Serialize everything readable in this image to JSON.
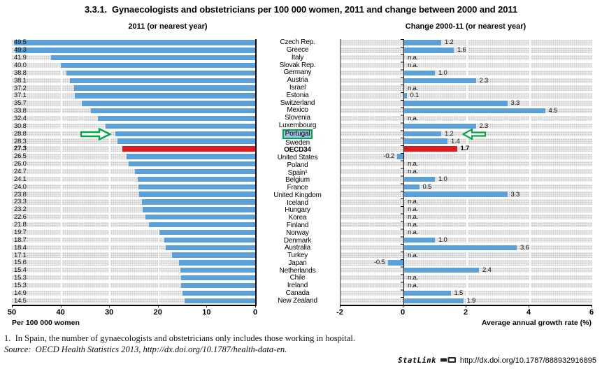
{
  "figure_title": "3.3.1.  Gynaecologists and obstetricians per 100 000 women, 2011 and change between 2000 and 2011",
  "left_chart": {
    "title": "2011 (or nearest year)",
    "axis_label": "Per 100 000 women",
    "ticks": [
      "50",
      "40",
      "30",
      "20",
      "10",
      "0"
    ],
    "max": 50
  },
  "right_chart": {
    "title": "Change 2000-11 (or nearest year)",
    "axis_label": "Average annual growth rate (%)",
    "ticks": [
      "-2",
      "0",
      "2",
      "4",
      "6"
    ],
    "min": -2,
    "max": 6,
    "na_text": "n.a."
  },
  "rows": [
    {
      "country": "Czech Rep.",
      "rate": 49.5,
      "rate_label": "49.5",
      "change": 1.2,
      "change_label": "1.2",
      "emphasis": false,
      "annotated": false
    },
    {
      "country": "Greece",
      "rate": 49.3,
      "rate_label": "49.3",
      "change": 1.6,
      "change_label": "1.6",
      "emphasis": false,
      "annotated": false
    },
    {
      "country": "Italy",
      "rate": 41.9,
      "rate_label": "41.9",
      "change": null,
      "change_label": "n.a.",
      "emphasis": false,
      "annotated": false
    },
    {
      "country": "Slovak Rep.",
      "rate": 40.0,
      "rate_label": "40.0",
      "change": null,
      "change_label": "n.a.",
      "emphasis": false,
      "annotated": false
    },
    {
      "country": "Germany",
      "rate": 38.8,
      "rate_label": "38.8",
      "change": 1.0,
      "change_label": "1.0",
      "emphasis": false,
      "annotated": false
    },
    {
      "country": "Austria",
      "rate": 38.1,
      "rate_label": "38.1",
      "change": 2.3,
      "change_label": "2.3",
      "emphasis": false,
      "annotated": false
    },
    {
      "country": "Israel",
      "rate": 37.2,
      "rate_label": "37.2",
      "change": null,
      "change_label": "n.a.",
      "emphasis": false,
      "annotated": false
    },
    {
      "country": "Estonia",
      "rate": 37.1,
      "rate_label": "37.1",
      "change": 0.1,
      "change_label": "0.1",
      "emphasis": false,
      "annotated": false
    },
    {
      "country": "Switzerland",
      "rate": 35.7,
      "rate_label": "35.7",
      "change": 3.3,
      "change_label": "3.3",
      "emphasis": false,
      "annotated": false
    },
    {
      "country": "Mexico",
      "rate": 33.8,
      "rate_label": "33.8",
      "change": 4.5,
      "change_label": "4.5",
      "emphasis": false,
      "annotated": false
    },
    {
      "country": "Slovenia",
      "rate": 32.4,
      "rate_label": "32.4",
      "change": null,
      "change_label": "n.a.",
      "emphasis": false,
      "annotated": false
    },
    {
      "country": "Luxembourg",
      "rate": 30.8,
      "rate_label": "30.8",
      "change": 2.3,
      "change_label": "2.3",
      "emphasis": false,
      "annotated": false
    },
    {
      "country": "Portugal",
      "rate": 28.8,
      "rate_label": "28.8",
      "change": 1.2,
      "change_label": "1.2",
      "emphasis": false,
      "annotated": true
    },
    {
      "country": "Sweden",
      "rate": 28.3,
      "rate_label": "28.3",
      "change": 1.4,
      "change_label": "1.4",
      "emphasis": false,
      "annotated": false
    },
    {
      "country": "OECD34",
      "rate": 27.3,
      "rate_label": "27.3",
      "change": 1.7,
      "change_label": "1.7",
      "emphasis": true,
      "annotated": false
    },
    {
      "country": "United States",
      "rate": 26.5,
      "rate_label": "26.5",
      "change": -0.2,
      "change_label": "-0.2",
      "emphasis": false,
      "annotated": false
    },
    {
      "country": "Poland",
      "rate": 26.0,
      "rate_label": "26.0",
      "change": null,
      "change_label": "n.a.",
      "emphasis": false,
      "annotated": false
    },
    {
      "country": "Spain¹",
      "rate": 24.7,
      "rate_label": "24.7",
      "change": null,
      "change_label": "n.a.",
      "emphasis": false,
      "annotated": false
    },
    {
      "country": "Belgium",
      "rate": 24.1,
      "rate_label": "24.1",
      "change": 1.0,
      "change_label": "1.0",
      "emphasis": false,
      "annotated": false
    },
    {
      "country": "France",
      "rate": 24.0,
      "rate_label": "24.0",
      "change": 0.5,
      "change_label": "0.5",
      "emphasis": false,
      "annotated": false
    },
    {
      "country": "United Kingdom",
      "rate": 23.8,
      "rate_label": "23.8",
      "change": 3.3,
      "change_label": "3.3",
      "emphasis": false,
      "annotated": false
    },
    {
      "country": "Iceland",
      "rate": 23.3,
      "rate_label": "23.3",
      "change": null,
      "change_label": "n.a.",
      "emphasis": false,
      "annotated": false
    },
    {
      "country": "Hungary",
      "rate": 23.2,
      "rate_label": "23.2",
      "change": null,
      "change_label": "n.a.",
      "emphasis": false,
      "annotated": false
    },
    {
      "country": "Korea",
      "rate": 22.6,
      "rate_label": "22.6",
      "change": null,
      "change_label": "n.a.",
      "emphasis": false,
      "annotated": false
    },
    {
      "country": "Finland",
      "rate": 21.8,
      "rate_label": "21.8",
      "change": null,
      "change_label": "n.a.",
      "emphasis": false,
      "annotated": false
    },
    {
      "country": "Norway",
      "rate": 19.7,
      "rate_label": "19.7",
      "change": null,
      "change_label": "n.a.",
      "emphasis": false,
      "annotated": false
    },
    {
      "country": "Denmark",
      "rate": 18.7,
      "rate_label": "18.7",
      "change": 1.0,
      "change_label": "1.0",
      "emphasis": false,
      "annotated": false
    },
    {
      "country": "Australia",
      "rate": 18.4,
      "rate_label": "18.4",
      "change": 3.6,
      "change_label": "3.6",
      "emphasis": false,
      "annotated": false
    },
    {
      "country": "Turkey",
      "rate": 17.1,
      "rate_label": "17.1",
      "change": null,
      "change_label": "n.a.",
      "emphasis": false,
      "annotated": false
    },
    {
      "country": "Japan",
      "rate": 15.6,
      "rate_label": "15.6",
      "change": -0.5,
      "change_label": "-0.5",
      "emphasis": false,
      "annotated": false
    },
    {
      "country": "Netherlands",
      "rate": 15.4,
      "rate_label": "15.4",
      "change": 2.4,
      "change_label": "2.4",
      "emphasis": false,
      "annotated": false
    },
    {
      "country": "Chile",
      "rate": 15.3,
      "rate_label": "15.3",
      "change": null,
      "change_label": "n.a.",
      "emphasis": false,
      "annotated": false
    },
    {
      "country": "Ireland",
      "rate": 15.3,
      "rate_label": "15.3",
      "change": null,
      "change_label": "n.a.",
      "emphasis": false,
      "annotated": false
    },
    {
      "country": "Canada",
      "rate": 14.9,
      "rate_label": "14.9",
      "change": 1.5,
      "change_label": "1.5",
      "emphasis": false,
      "annotated": false
    },
    {
      "country": "New Zealand",
      "rate": 14.5,
      "rate_label": "14.5",
      "change": 1.9,
      "change_label": "1.9",
      "emphasis": false,
      "annotated": false
    }
  ],
  "chart_data": {
    "type": "bar",
    "orientation": "horizontal",
    "title": "3.3.1. Gynaecologists and obstetricians per 100 000 women, 2011 and change between 2000 and 2011",
    "categories": [
      "Czech Rep.",
      "Greece",
      "Italy",
      "Slovak Rep.",
      "Germany",
      "Austria",
      "Israel",
      "Estonia",
      "Switzerland",
      "Mexico",
      "Slovenia",
      "Luxembourg",
      "Portugal",
      "Sweden",
      "OECD34",
      "United States",
      "Poland",
      "Spain¹",
      "Belgium",
      "France",
      "United Kingdom",
      "Iceland",
      "Hungary",
      "Korea",
      "Finland",
      "Norway",
      "Denmark",
      "Australia",
      "Turkey",
      "Japan",
      "Netherlands",
      "Chile",
      "Ireland",
      "Canada",
      "New Zealand"
    ],
    "series": [
      {
        "name": "2011 (or nearest year)",
        "xlabel": "Per 100 000 women",
        "axis_range": [
          0,
          50
        ],
        "values": [
          49.5,
          49.3,
          41.9,
          40.0,
          38.8,
          38.1,
          37.2,
          37.1,
          35.7,
          33.8,
          32.4,
          30.8,
          28.8,
          28.3,
          27.3,
          26.5,
          26.0,
          24.7,
          24.1,
          24.0,
          23.8,
          23.3,
          23.2,
          22.6,
          21.8,
          19.7,
          18.7,
          18.4,
          17.1,
          15.6,
          15.4,
          15.3,
          15.3,
          14.9,
          14.5
        ]
      },
      {
        "name": "Change 2000-11 (or nearest year)",
        "xlabel": "Average annual growth rate (%)",
        "axis_range": [
          -2,
          6
        ],
        "na_value": "n.a.",
        "values": [
          1.2,
          1.6,
          null,
          null,
          1.0,
          2.3,
          null,
          0.1,
          3.3,
          4.5,
          null,
          2.3,
          1.2,
          1.4,
          1.7,
          -0.2,
          null,
          null,
          1.0,
          0.5,
          3.3,
          null,
          null,
          null,
          null,
          null,
          1.0,
          3.6,
          null,
          -0.5,
          2.4,
          null,
          null,
          1.5,
          1.9
        ]
      }
    ],
    "highlight_category": "OECD34",
    "annotated_category": "Portugal",
    "grid": true,
    "legend_position": "none"
  },
  "footer": {
    "footnote": "1.  In Spain, the number of gynaecologists and obstetricians only includes those working in hospital.",
    "source": "Source:  OECD Health Statistics 2013, http://dx.doi.org/10.1787/health-data-en.",
    "statlink_label": "StatLink",
    "statlink_url": "http://dx.doi.org/10.1787/888932916895"
  },
  "colors": {
    "bar_blue": "#5ba0d8",
    "bar_red": "#e2191f",
    "annotation_green": "#00a647",
    "highlight_blue": "#9fc3e6",
    "band_gray": "#ebebeb"
  }
}
